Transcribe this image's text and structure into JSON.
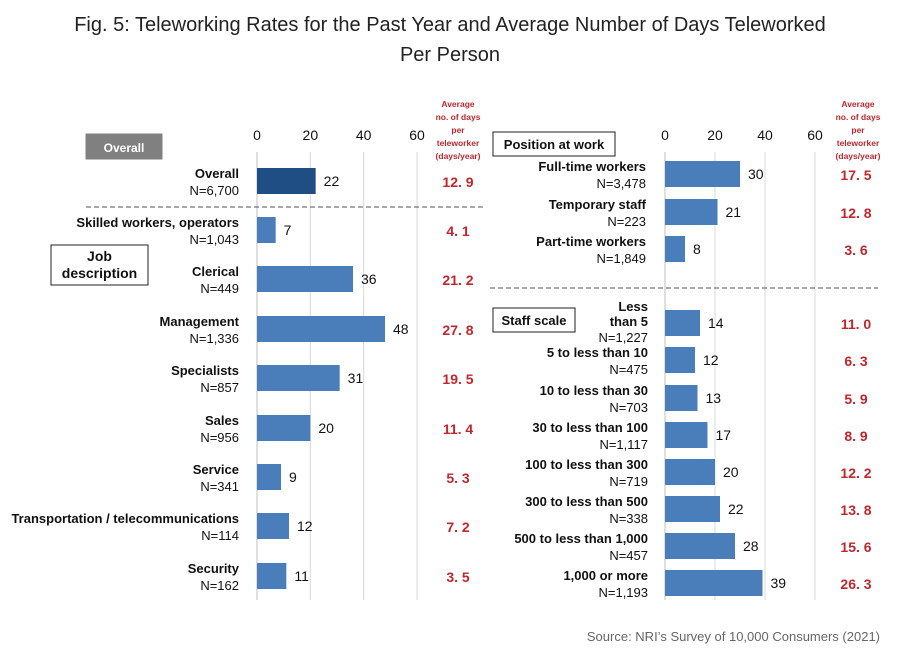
{
  "title_line1": "Fig. 5: Teleworking Rates for the Past Year and Average Number of Days Teleworked",
  "title_line2": "Per Person",
  "source": "Source: NRI’s Survey of 10,000 Consumers (2021)",
  "colors": {
    "bar": "#4a7ebb",
    "overall_bar": "#1f4e85",
    "avg_text": "#c0272d",
    "badge_bg": "#808080"
  },
  "chart_data": [
    {
      "type": "bar",
      "orientation": "horizontal",
      "panel": "left",
      "xlim": [
        0,
        60
      ],
      "ticks": [
        0,
        20,
        40,
        60
      ],
      "grid": true,
      "avg_header": [
        "Average",
        "no. of days",
        "per",
        "teleworker",
        "(days/year)"
      ],
      "overall_label": "Overall",
      "section_label": [
        "Job",
        "description"
      ],
      "categories": [
        {
          "label": "Overall",
          "n": "N=6,700",
          "value": 22,
          "avg": "12. 9",
          "highlight": true
        },
        {
          "label": "Skilled workers, operators",
          "n": "N=1,043",
          "value": 7,
          "avg": "4. 1"
        },
        {
          "label": "Clerical",
          "n": "N=449",
          "value": 36,
          "avg": "21. 2"
        },
        {
          "label": "Management",
          "n": "N=1,336",
          "value": 48,
          "avg": "27. 8"
        },
        {
          "label": "Specialists",
          "n": "N=857",
          "value": 31,
          "avg": "19. 5"
        },
        {
          "label": "Sales",
          "n": "N=956",
          "value": 20,
          "avg": "11. 4"
        },
        {
          "label": "Service",
          "n": "N=341",
          "value": 9,
          "avg": "5. 3"
        },
        {
          "label": "Transportation / telecommunications",
          "n": "N=114",
          "value": 12,
          "avg": "7. 2"
        },
        {
          "label": "Security",
          "n": "N=162",
          "value": 11,
          "avg": "3. 5"
        }
      ]
    },
    {
      "type": "bar",
      "orientation": "horizontal",
      "panel": "right",
      "xlim": [
        0,
        60
      ],
      "ticks": [
        0,
        20,
        40,
        60
      ],
      "grid": true,
      "avg_header": [
        "Average",
        "no. of days",
        "per",
        "teleworker",
        "(days/year)"
      ],
      "section1_label": "Position at work",
      "section2_label": "Staff scale",
      "position": [
        {
          "label": "Full-time workers",
          "n": "N=3,478",
          "value": 30,
          "avg": "17. 5"
        },
        {
          "label": "Temporary staff",
          "n": "N=223",
          "value": 21,
          "avg": "12. 8"
        },
        {
          "label": "Part-time workers",
          "n": "N=1,849",
          "value": 8,
          "avg": "3. 6"
        }
      ],
      "scale": [
        {
          "label": "Less than 5",
          "n": "N=1,227",
          "value": 14,
          "avg": "11. 0"
        },
        {
          "label": "5 to less than 10",
          "n": "N=475",
          "value": 12,
          "avg": "6. 3"
        },
        {
          "label": "10 to less than 30",
          "n": "N=703",
          "value": 13,
          "avg": "5. 9"
        },
        {
          "label": "30 to less than 100",
          "n": "N=1,117",
          "value": 17,
          "avg": "8. 9"
        },
        {
          "label": "100 to less than 300",
          "n": "N=719",
          "value": 20,
          "avg": "12. 2"
        },
        {
          "label": "300 to less than 500",
          "n": "N=338",
          "value": 22,
          "avg": "13. 8"
        },
        {
          "label": "500 to less than 1,000",
          "n": "N=457",
          "value": 28,
          "avg": "15. 6"
        },
        {
          "label": "1,000 or more",
          "n": "N=1,193",
          "value": 39,
          "avg": "26. 3"
        }
      ]
    }
  ]
}
